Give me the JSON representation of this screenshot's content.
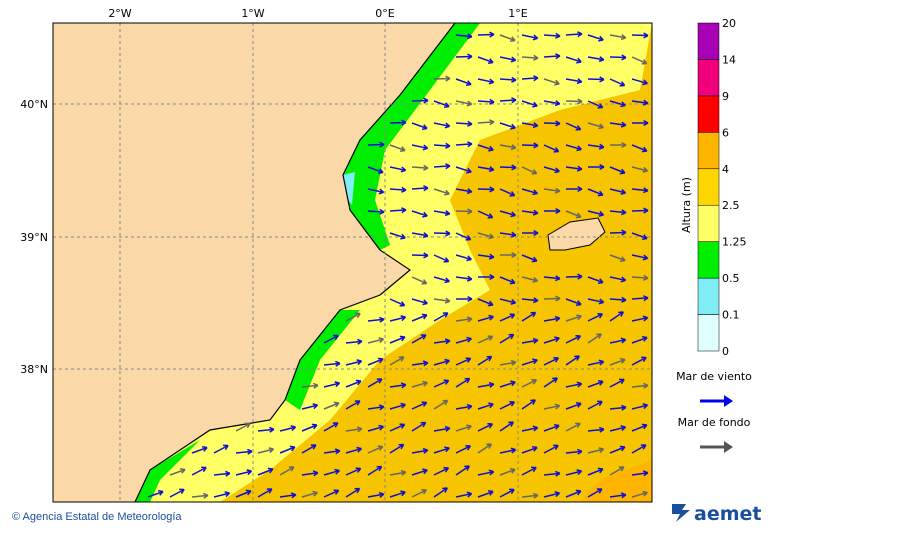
{
  "map": {
    "longitudes": [
      "2°W",
      "1°W",
      "0°E",
      "1°E"
    ],
    "latitudes": [
      "40°N",
      "39°N",
      "38°N"
    ],
    "colorbar": {
      "title": "Altura (m)",
      "labels": [
        "0",
        "0.1",
        "0.5",
        "1.25",
        "2.5",
        "4",
        "6",
        "9",
        "14",
        "20"
      ],
      "colors": [
        "#e0ffff",
        "#80ecf4",
        "#00ee00",
        "#ffff66",
        "#ffd700",
        "#ffb400",
        "#ff0000",
        "#f0007a",
        "#a800b4"
      ]
    },
    "legend": [
      {
        "label": "Mar de viento",
        "color": "#0000ee"
      },
      {
        "label": "Mar de fondo",
        "color": "#555555"
      }
    ],
    "footer": {
      "credit": "© Agencia Estatal de Meteorología",
      "logo": "aemet"
    }
  }
}
